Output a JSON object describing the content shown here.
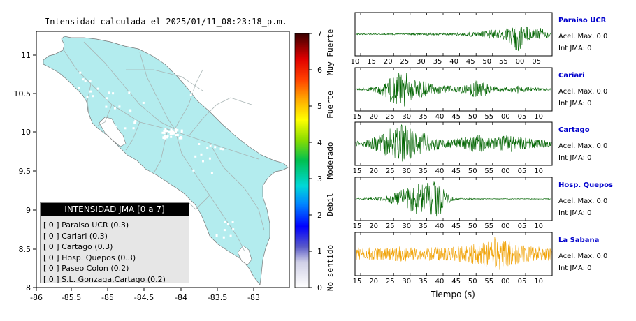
{
  "map": {
    "title": "Intensidad calculada el 2025/01/11_08:23:18_p.m.",
    "x_ticks": [
      "-86",
      "-85.5",
      "-85",
      "-84.5",
      "-84",
      "-83.5",
      "-83"
    ],
    "y_ticks": [
      "11",
      "10.5",
      "10",
      "9.5",
      "9",
      "8.5",
      "8"
    ],
    "land_color": "#b3ecee"
  },
  "colorbar": {
    "ticks": [
      "0",
      "1",
      "2",
      "3",
      "4",
      "5",
      "6",
      "7"
    ],
    "labels": [
      "No sentido",
      "Debil",
      "Moderado",
      "Fuerte",
      "Muy Fuerte"
    ]
  },
  "legend": {
    "header": "INTENSIDAD JMA [0 a 7]",
    "rows": [
      "[ 0 ]  Paraiso UCR (0.3)",
      "[ 0 ]  Cariari (0.3)",
      "[ 0 ]  Cartago (0.3)",
      "[ 0 ]  Hosp. Quepos (0.3)",
      "[ 0 ]  Paseo Colon (0.2)",
      "[ 0 ]  S.L. Gonzaga,Cartago (0.2)"
    ]
  },
  "chart_data": {
    "type": "line",
    "xlabel": "Tiempo (s)",
    "series": [
      {
        "name": "Paraiso UCR",
        "accel_label": "Acel. Max. 0.0",
        "jma_label": "Int JMA: 0",
        "color": "#006400",
        "ticks": [
          "10",
          "15",
          "20",
          "25",
          "30",
          "35",
          "40",
          "45",
          "50",
          "55",
          "00",
          "05"
        ],
        "amp": [
          0.03,
          0.03,
          0.03,
          0.03,
          0.03,
          0.03,
          0.04,
          0.04,
          0.05,
          0.04,
          0.05,
          0.06,
          0.04,
          0.05,
          0.05,
          0.08,
          0.06,
          0.12,
          0.1,
          0.16,
          0.22,
          0.2,
          0.3,
          0.5,
          0.9,
          0.45,
          0.3,
          0.35,
          0.25,
          0.15
        ]
      },
      {
        "name": "Cariari",
        "accel_label": "Acel. Max. 0.0",
        "jma_label": "Int JMA: 0",
        "color": "#006400",
        "ticks": [
          "15",
          "20",
          "25",
          "30",
          "35",
          "40",
          "45",
          "50",
          "55",
          "00",
          "05",
          "10"
        ],
        "amp": [
          0.04,
          0.06,
          0.1,
          0.18,
          0.35,
          0.6,
          0.8,
          0.95,
          0.7,
          0.5,
          0.4,
          0.3,
          0.25,
          0.2,
          0.18,
          0.15,
          0.2,
          0.3,
          0.55,
          0.35,
          0.2,
          0.15,
          0.12,
          0.15,
          0.2,
          0.15,
          0.12,
          0.08,
          0.06,
          0.05
        ]
      },
      {
        "name": "Cartago",
        "accel_label": "Acel. Max. 0.0",
        "jma_label": "Int JMA: 0",
        "color": "#006400",
        "ticks": [
          "15",
          "20",
          "25",
          "30",
          "35",
          "40",
          "45",
          "50",
          "55",
          "00",
          "05",
          "10"
        ],
        "amp": [
          0.12,
          0.18,
          0.25,
          0.35,
          0.5,
          0.75,
          0.9,
          1.0,
          0.8,
          0.5,
          0.55,
          0.4,
          0.3,
          0.25,
          0.22,
          0.25,
          0.3,
          0.4,
          0.45,
          0.35,
          0.3,
          0.3,
          0.4,
          0.45,
          0.4,
          0.3,
          0.25,
          0.2,
          0.18,
          0.15
        ]
      },
      {
        "name": "Hosp. Quepos",
        "accel_label": "Acel. Max. 0.0",
        "jma_label": "Int JMA: 0",
        "color": "#006400",
        "ticks": [
          "15",
          "20",
          "25",
          "30",
          "35",
          "40",
          "45",
          "50",
          "55",
          "00",
          "05",
          "10"
        ],
        "amp": [
          0.03,
          0.04,
          0.05,
          0.08,
          0.12,
          0.2,
          0.3,
          0.5,
          0.6,
          0.8,
          0.7,
          0.85,
          1.0,
          0.6,
          0.15,
          0.05,
          0.03,
          0.03,
          0.02,
          0.02,
          0.02,
          0.02,
          0.02,
          0.02,
          0.02,
          0.02,
          0.02,
          0.02,
          0.02,
          0.02
        ]
      },
      {
        "name": "La Sabana",
        "accel_label": "Acel. Max. 0.0",
        "jma_label": "Int JMA: 0",
        "color": "#f0a000",
        "ticks": [
          "15",
          "20",
          "25",
          "30",
          "35",
          "40",
          "45",
          "50",
          "55",
          "00",
          "05",
          "10"
        ],
        "amp": [
          0.3,
          0.32,
          0.35,
          0.3,
          0.3,
          0.32,
          0.35,
          0.4,
          0.35,
          0.3,
          0.3,
          0.32,
          0.35,
          0.3,
          0.35,
          0.4,
          0.45,
          0.5,
          0.55,
          0.6,
          0.7,
          0.95,
          0.75,
          0.6,
          0.5,
          0.45,
          0.4,
          0.38,
          0.35,
          0.32
        ]
      }
    ]
  }
}
